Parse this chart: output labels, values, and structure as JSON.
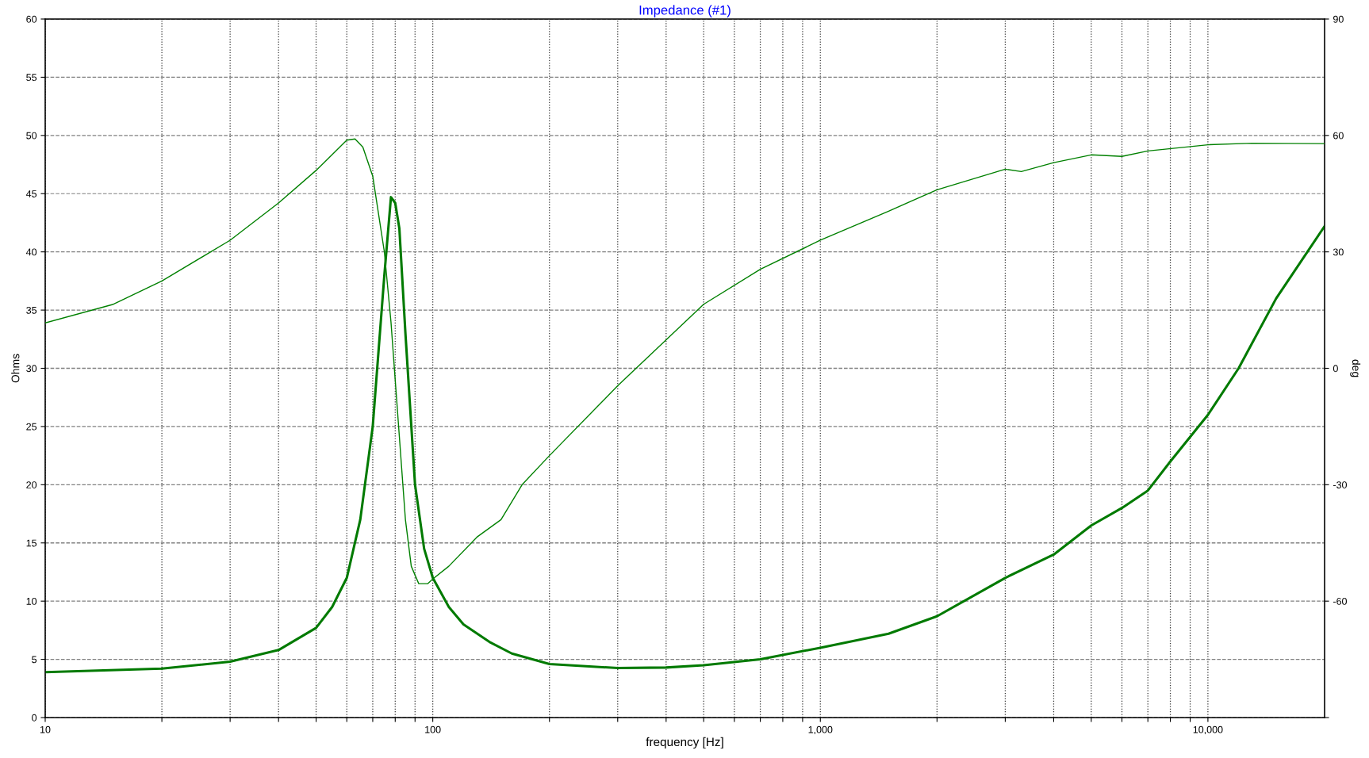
{
  "chart_data": {
    "type": "line",
    "title": "Impedance (#1)",
    "xlabel": "frequency [Hz]",
    "ylabel": "Ohms",
    "y2label": "deg",
    "log": "x",
    "grid": true,
    "line_style": "solid",
    "marker": "none",
    "xlim": [
      10,
      20000
    ],
    "ylim": [
      0,
      60
    ],
    "y2lim": [
      -90,
      90
    ],
    "xticks": [
      10,
      {
        "value": 20,
        "label": null
      },
      {
        "value": 30,
        "label": null
      },
      {
        "value": 40,
        "label": null
      },
      {
        "value": 50,
        "label": null
      },
      {
        "value": 60,
        "label": null
      },
      {
        "value": 70,
        "label": null
      },
      {
        "value": 80,
        "label": null
      },
      {
        "value": 90,
        "label": null
      },
      100,
      {
        "value": 200,
        "label": null
      },
      {
        "value": 300,
        "label": null
      },
      {
        "value": 400,
        "label": null
      },
      {
        "value": 500,
        "label": null
      },
      {
        "value": 600,
        "label": null
      },
      {
        "value": 700,
        "label": null
      },
      {
        "value": 800,
        "label": null
      },
      {
        "value": 900,
        "label": null
      },
      {
        "value": 1000,
        "label": "1,000"
      },
      {
        "value": 2000,
        "label": null
      },
      {
        "value": 3000,
        "label": null
      },
      {
        "value": 4000,
        "label": null
      },
      {
        "value": 5000,
        "label": null
      },
      {
        "value": 6000,
        "label": null
      },
      {
        "value": 7000,
        "label": null
      },
      {
        "value": 8000,
        "label": null
      },
      {
        "value": 9000,
        "label": null
      },
      {
        "value": 10000,
        "label": "10,000"
      }
    ],
    "yticks": [
      0,
      5,
      10,
      15,
      20,
      25,
      30,
      35,
      40,
      45,
      50,
      55,
      60
    ],
    "y2ticks": [
      {
        "value": -90,
        "label": null
      },
      -60,
      -30,
      0,
      30,
      60,
      90
    ],
    "series": [
      {
        "color": "#007a00",
        "axis": "y",
        "x": [
          10,
          20,
          30,
          40,
          50,
          55,
          60,
          65,
          70,
          75,
          78,
          80,
          82,
          85,
          90,
          95,
          100,
          110,
          120,
          140,
          160,
          200,
          300,
          400,
          500,
          700,
          1000,
          1500,
          2000,
          3000,
          4000,
          5000,
          6000,
          7000,
          8000,
          10000,
          12000,
          15000,
          20000
        ],
        "values": [
          3.9,
          4.2,
          4.8,
          5.8,
          7.7,
          9.5,
          12,
          17,
          25,
          38,
          44.7,
          44.2,
          42,
          33,
          20,
          14.5,
          12,
          9.5,
          8,
          6.5,
          5.5,
          4.6,
          4.25,
          4.3,
          4.5,
          5,
          6,
          7.2,
          8.7,
          12,
          14,
          16.5,
          18,
          19.5,
          22,
          26,
          30,
          36,
          42.2
        ]
      },
      {
        "color": "#008000",
        "axis": "y2",
        "x": [
          10,
          15,
          20,
          30,
          40,
          50,
          60,
          63,
          66,
          70,
          75,
          78,
          80,
          85,
          88,
          92,
          97,
          100,
          110,
          130,
          150,
          170,
          200,
          300,
          500,
          700,
          1000,
          1500,
          2000,
          3000,
          3300,
          4000,
          5000,
          6000,
          7000,
          10000,
          13000,
          20000
        ],
        "values": [
          11.7,
          16.5,
          22.5,
          33,
          42.6,
          51,
          58.8,
          59.1,
          57,
          49.5,
          30,
          12,
          -3,
          -39,
          -51,
          -55.5,
          -55.5,
          -54.3,
          -51,
          -43.5,
          -39,
          -30,
          -22.5,
          -4.5,
          16.5,
          25.5,
          33,
          40.5,
          46,
          51.3,
          50.7,
          53,
          55,
          54.6,
          56,
          57.6,
          58,
          57.9
        ]
      }
    ]
  }
}
